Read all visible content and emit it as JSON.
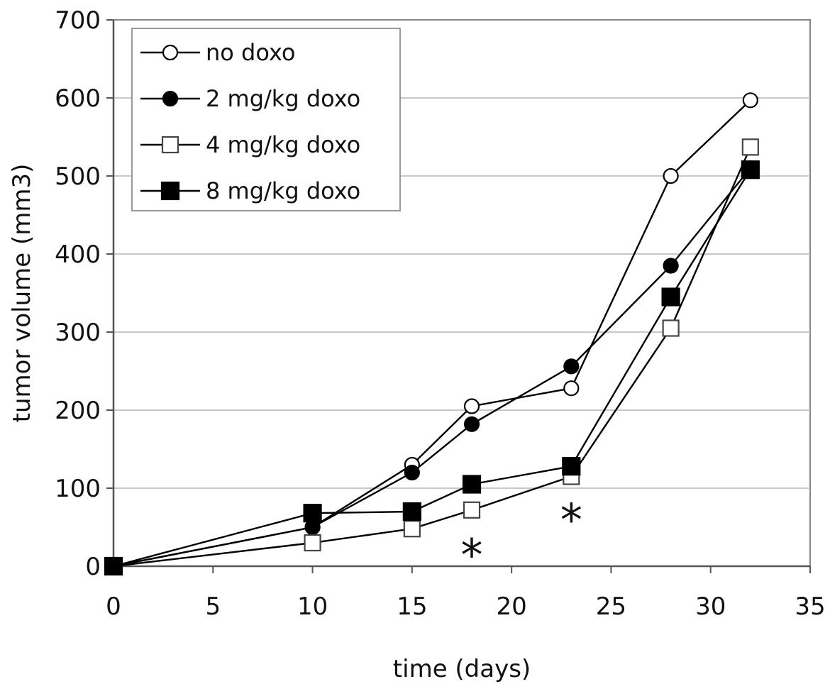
{
  "chart_data": {
    "type": "line",
    "xlabel": "time (days)",
    "ylabel": "tumor volume (mm3)",
    "xlim": [
      0,
      35
    ],
    "ylim": [
      0,
      700
    ],
    "xticks": [
      0,
      5,
      10,
      15,
      20,
      25,
      30,
      35
    ],
    "yticks": [
      0,
      100,
      200,
      300,
      400,
      500,
      600,
      700
    ],
    "grid": "horizontal",
    "legend_position": "top-left",
    "series": [
      {
        "name": "no doxo",
        "marker": "circle",
        "filled": false,
        "x": [
          0,
          10,
          15,
          18,
          23,
          28,
          32
        ],
        "y": [
          0,
          50,
          130,
          205,
          228,
          500,
          597
        ]
      },
      {
        "name": "2 mg/kg doxo",
        "marker": "circle",
        "filled": true,
        "x": [
          0,
          10,
          15,
          18,
          23,
          28,
          32
        ],
        "y": [
          0,
          50,
          120,
          182,
          256,
          385,
          510
        ]
      },
      {
        "name": "4 mg/kg doxo",
        "marker": "square",
        "filled": false,
        "x": [
          0,
          10,
          15,
          18,
          23,
          28,
          32
        ],
        "y": [
          0,
          30,
          48,
          72,
          115,
          305,
          537
        ]
      },
      {
        "name": "8 mg/kg doxo",
        "marker": "square",
        "filled": true,
        "x": [
          0,
          10,
          15,
          18,
          23,
          28,
          32
        ],
        "y": [
          0,
          68,
          70,
          105,
          128,
          345,
          508
        ]
      }
    ],
    "annotations": [
      {
        "text": "*",
        "x": 18,
        "y": 20
      },
      {
        "text": "*",
        "x": 23,
        "y": 65
      }
    ]
  }
}
